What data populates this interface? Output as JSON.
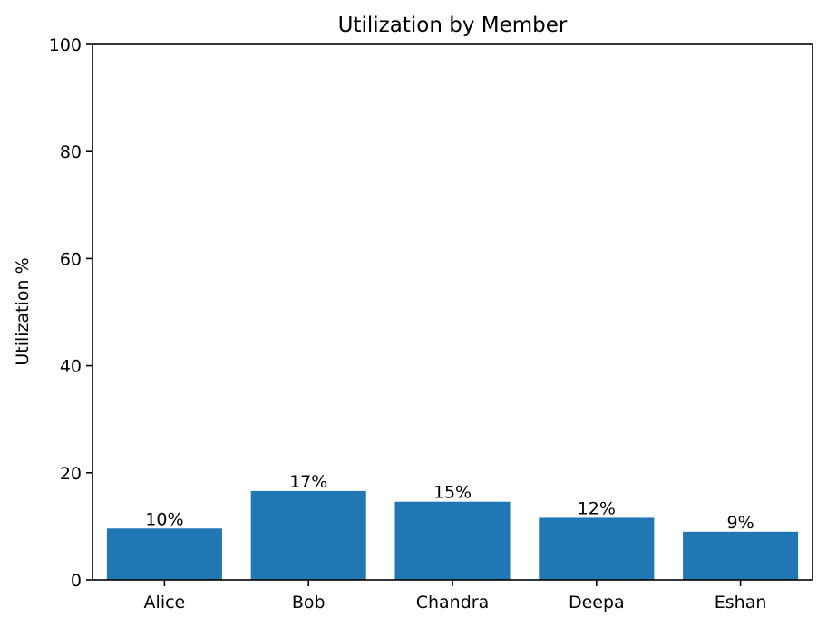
{
  "chart_data": {
    "type": "bar",
    "title": "Utilization by Member",
    "xlabel": "",
    "ylabel": "Utilization %",
    "categories": [
      "Alice",
      "Bob",
      "Chandra",
      "Deepa",
      "Eshan"
    ],
    "values": [
      9.6,
      16.6,
      14.6,
      11.6,
      9.0
    ],
    "data_labels": [
      "10%",
      "17%",
      "15%",
      "12%",
      "9%"
    ],
    "ylim": [
      0,
      100
    ],
    "yticks": [
      0,
      20,
      40,
      60,
      80,
      100
    ],
    "bar_color": "#1f77b4",
    "grid": false
  }
}
